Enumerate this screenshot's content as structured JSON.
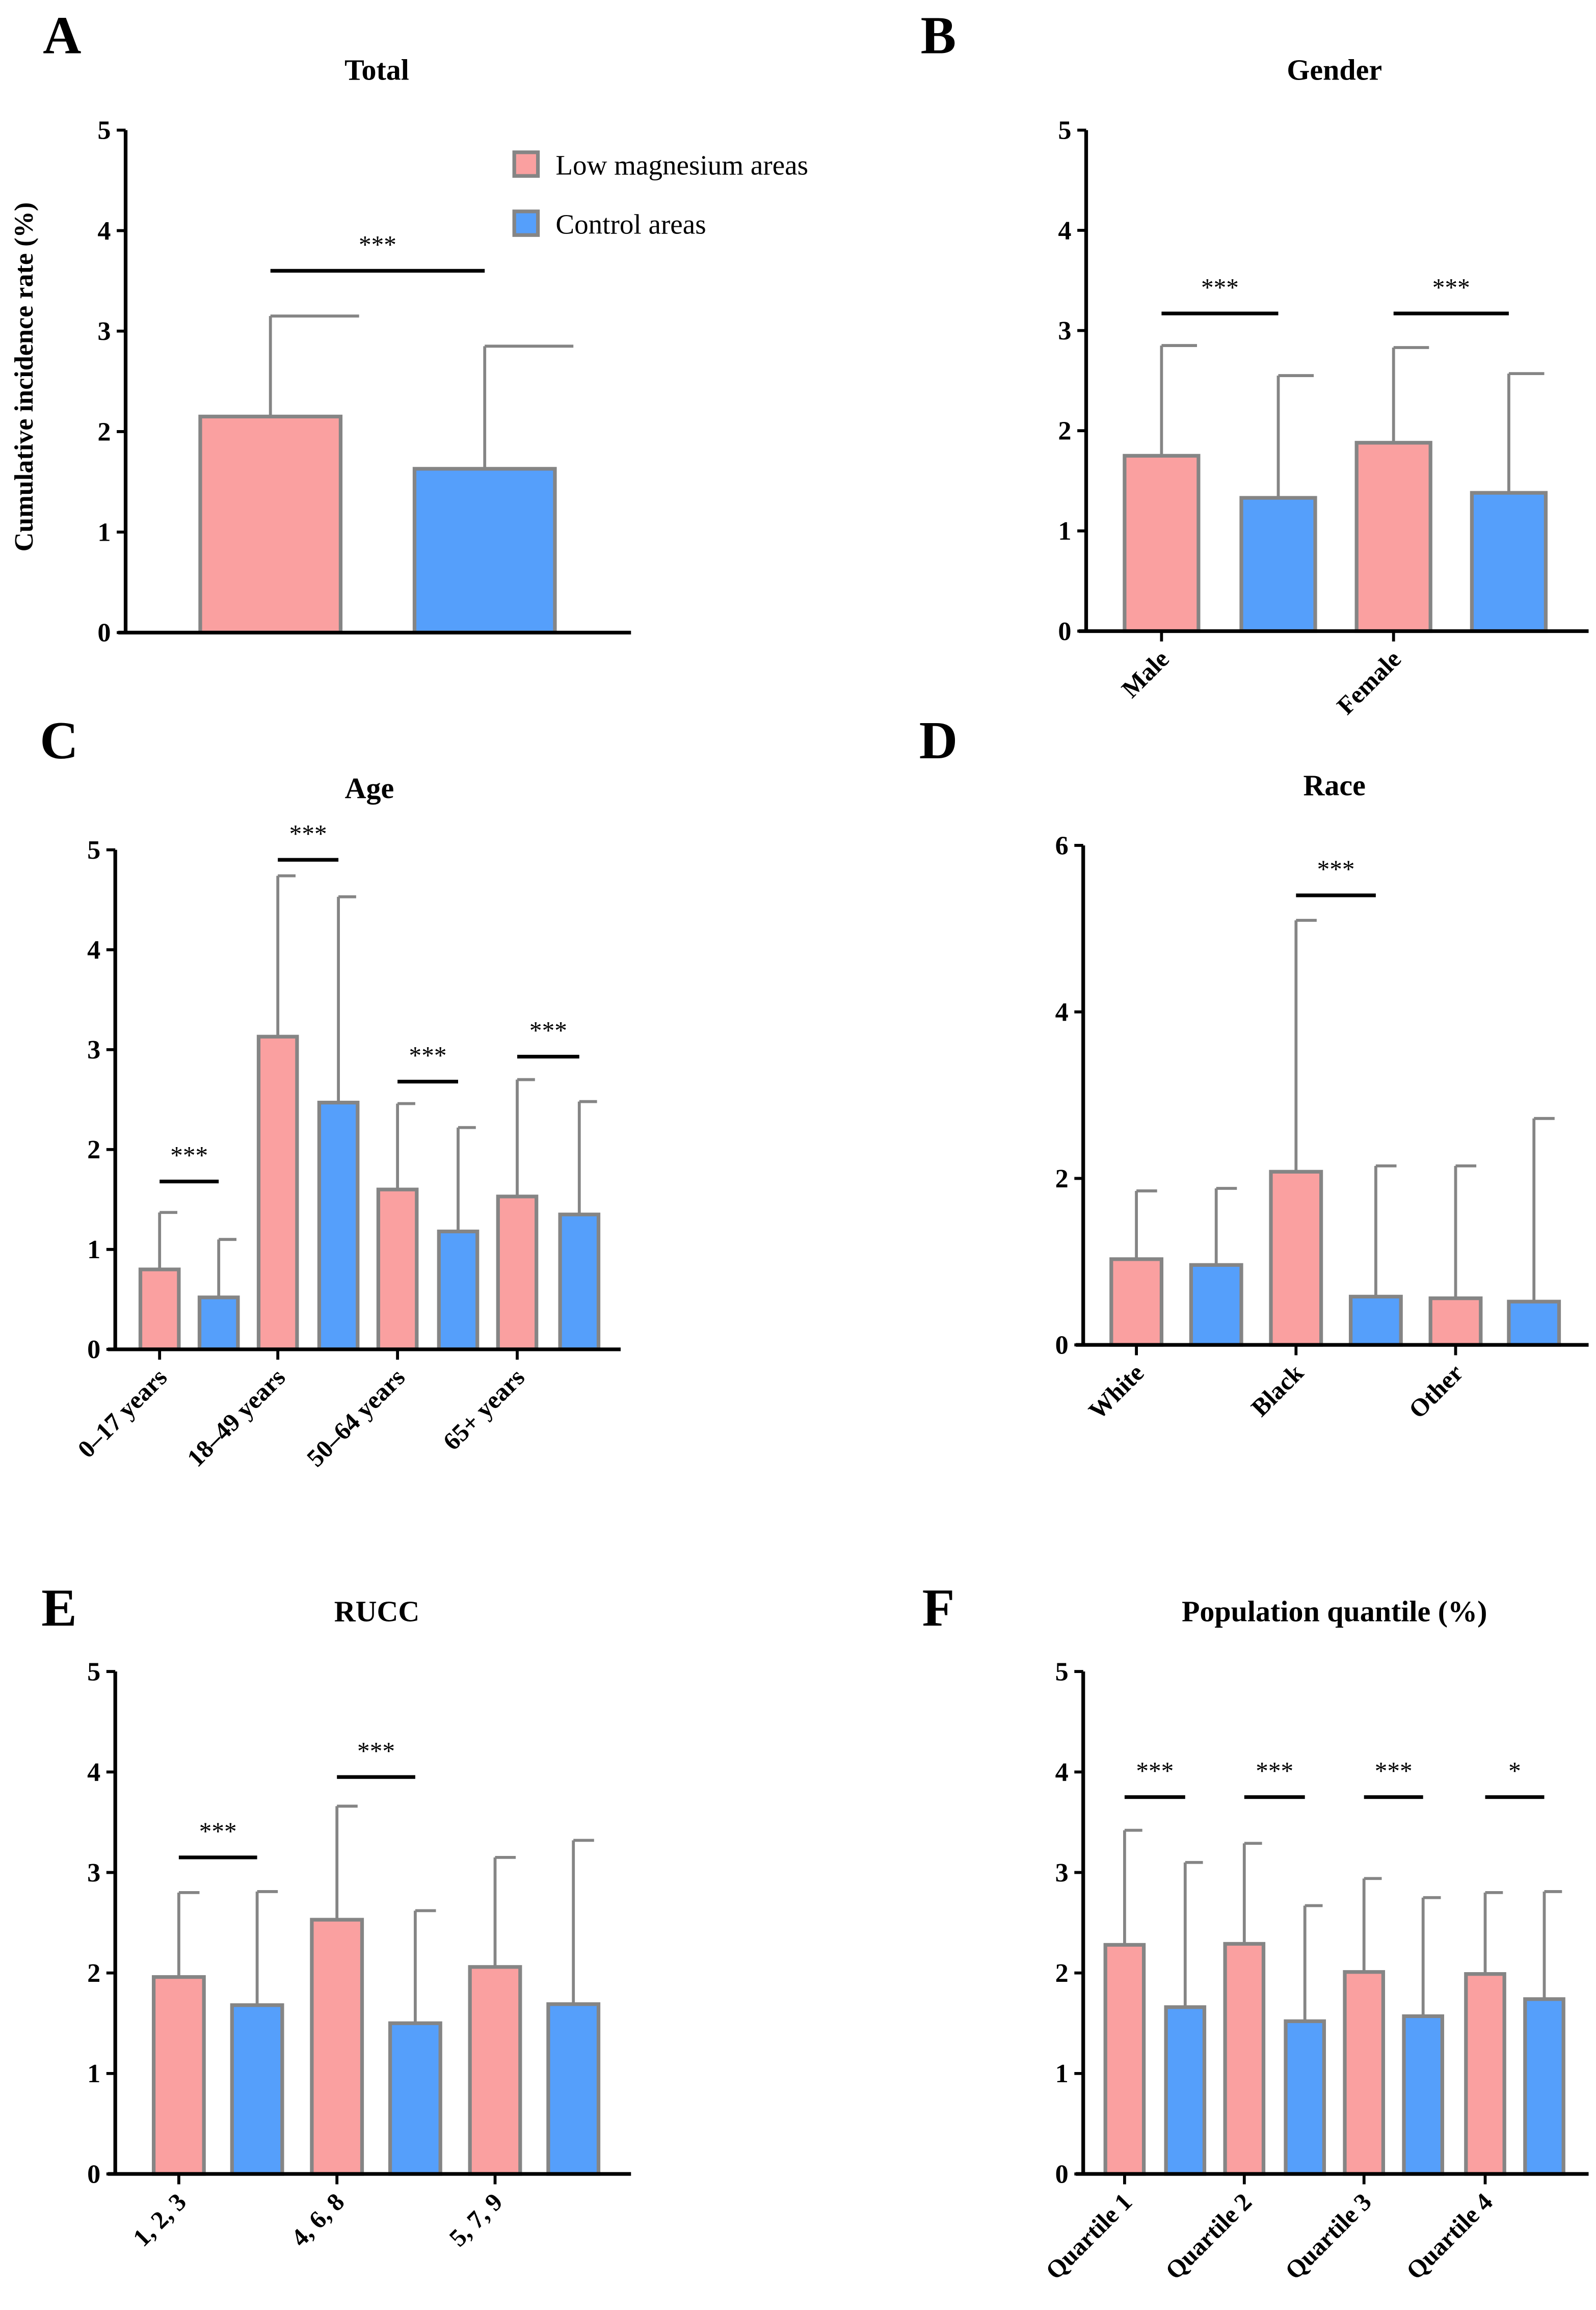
{
  "colors": {
    "low": "#FAA0A0",
    "control": "#559FFB",
    "border": "#858585",
    "axis": "#000000"
  },
  "legend": [
    "Low magnesium areas",
    "Control areas"
  ],
  "ylabel": "Cumulative incidence rate (%)",
  "chart_data": [
    {
      "panel": "A",
      "type": "bar",
      "title": "Total",
      "ylim": [
        0,
        5
      ],
      "yticks": [
        "0",
        "1",
        "2",
        "3",
        "4",
        "5"
      ],
      "categories": [
        ""
      ],
      "series": [
        {
          "name": "Low magnesium areas",
          "values": [
            2.15
          ],
          "err_upper": [
            3.15
          ]
        },
        {
          "name": "Control areas",
          "values": [
            1.63
          ],
          "err_upper": [
            2.85
          ]
        }
      ],
      "significance": [
        {
          "label": "***",
          "y": 3.6
        }
      ]
    },
    {
      "panel": "B",
      "type": "bar",
      "title": "Gender",
      "ylim": [
        0,
        5
      ],
      "yticks": [
        "0",
        "1",
        "2",
        "3",
        "4",
        "5"
      ],
      "categories": [
        "Male",
        "Female"
      ],
      "series": [
        {
          "name": "Low magnesium areas",
          "values": [
            1.75,
            1.88
          ],
          "err_upper": [
            2.85,
            2.83
          ]
        },
        {
          "name": "Control areas",
          "values": [
            1.33,
            1.38
          ],
          "err_upper": [
            2.55,
            2.57
          ]
        }
      ],
      "significance": [
        {
          "label": "***",
          "y": 3.17
        },
        {
          "label": "***",
          "y": 3.17
        }
      ]
    },
    {
      "panel": "C",
      "type": "bar",
      "title": "Age",
      "ylim": [
        0,
        5
      ],
      "yticks": [
        "0",
        "1",
        "2",
        "3",
        "4",
        "5"
      ],
      "categories": [
        "0–17 years",
        "18–49 years",
        "50–64 years",
        "65+ years"
      ],
      "series": [
        {
          "name": "Low magnesium areas",
          "values": [
            0.8,
            3.13,
            1.6,
            1.53
          ],
          "err_upper": [
            1.37,
            4.74,
            2.46,
            2.7
          ]
        },
        {
          "name": "Control areas",
          "values": [
            0.52,
            2.47,
            1.18,
            1.35
          ],
          "err_upper": [
            1.1,
            4.53,
            2.22,
            2.48
          ]
        }
      ],
      "significance": [
        {
          "label": "***",
          "y": 1.68
        },
        {
          "label": "***",
          "y": 4.9
        },
        {
          "label": "***",
          "y": 2.68
        },
        {
          "label": "***",
          "y": 2.93
        }
      ]
    },
    {
      "panel": "D",
      "type": "bar",
      "title": "Race",
      "ylim": [
        0,
        6
      ],
      "yticks": [
        "0",
        "2",
        "4",
        "6"
      ],
      "categories": [
        "White",
        "Black",
        "Other"
      ],
      "series": [
        {
          "name": "Low magnesium areas",
          "values": [
            1.03,
            2.08,
            0.56
          ],
          "err_upper": [
            1.85,
            5.1,
            2.15
          ]
        },
        {
          "name": "Control areas",
          "values": [
            0.96,
            0.58,
            0.52
          ],
          "err_upper": [
            1.88,
            2.15,
            2.72
          ]
        }
      ],
      "significance": [
        null,
        {
          "label": "***",
          "y": 5.4
        },
        null
      ]
    },
    {
      "panel": "E",
      "type": "bar",
      "title": "RUCC",
      "ylim": [
        0,
        5
      ],
      "yticks": [
        "0",
        "1",
        "2",
        "3",
        "4",
        "5"
      ],
      "categories": [
        "1, 2, 3",
        "4, 6, 8",
        "5, 7, 9"
      ],
      "series": [
        {
          "name": "Low magnesium areas",
          "values": [
            1.96,
            2.53,
            2.06
          ],
          "err_upper": [
            2.8,
            3.66,
            3.15
          ]
        },
        {
          "name": "Control areas",
          "values": [
            1.68,
            1.5,
            1.69
          ],
          "err_upper": [
            2.81,
            2.62,
            3.32
          ]
        }
      ],
      "significance": [
        {
          "label": "***",
          "y": 3.15
        },
        {
          "label": "***",
          "y": 3.95
        },
        null
      ]
    },
    {
      "panel": "F",
      "type": "bar",
      "title": "Population quantile (%)",
      "ylim": [
        0,
        5
      ],
      "yticks": [
        "0",
        "1",
        "2",
        "3",
        "4",
        "5"
      ],
      "categories": [
        "Quartile 1",
        "Quartile 2",
        "Quartile 3",
        "Quartile 4"
      ],
      "series": [
        {
          "name": "Low magnesium areas",
          "values": [
            2.28,
            2.29,
            2.01,
            1.99
          ],
          "err_upper": [
            3.42,
            3.29,
            2.94,
            2.8
          ]
        },
        {
          "name": "Control areas",
          "values": [
            1.66,
            1.52,
            1.57,
            1.74
          ],
          "err_upper": [
            3.1,
            2.67,
            2.75,
            2.81
          ]
        }
      ],
      "significance": [
        {
          "label": "***",
          "y": 3.75
        },
        {
          "label": "***",
          "y": 3.75
        },
        {
          "label": "***",
          "y": 3.75
        },
        {
          "label": "*",
          "y": 3.75
        }
      ]
    }
  ]
}
